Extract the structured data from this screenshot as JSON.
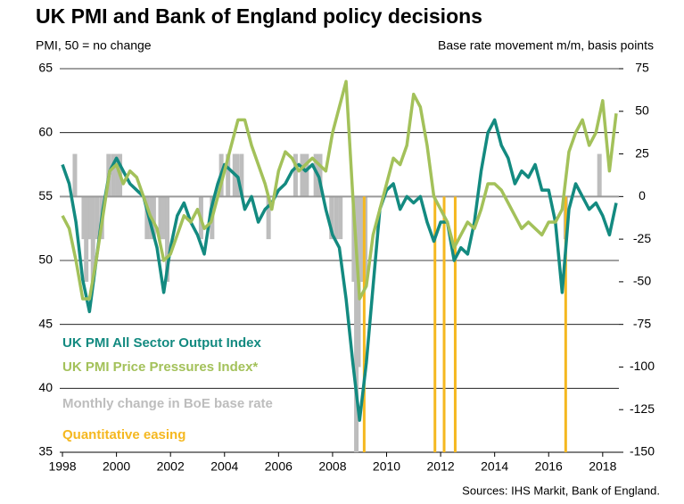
{
  "chart_data": {
    "type": "line",
    "title": "UK PMI and Bank of England policy decisions",
    "y_label": "PMI, 50 = no change",
    "y2_label": "Base rate movement m/m, basis points",
    "source": "Sources: IHS Markit, Bank of England.",
    "xlim": [
      1997.9,
      2018.6
    ],
    "xticks": [
      1998,
      2000,
      2002,
      2004,
      2006,
      2008,
      2010,
      2012,
      2014,
      2016,
      2018
    ],
    "ylim": [
      35,
      65
    ],
    "yticks": [
      35,
      40,
      45,
      50,
      55,
      60,
      65
    ],
    "y2lim": [
      -150,
      75
    ],
    "y2ticks": [
      -150,
      -125,
      -100,
      -75,
      -50,
      -25,
      0,
      25,
      50,
      75
    ],
    "grid": true,
    "x": [
      1998.0,
      1998.25,
      1998.5,
      1998.75,
      1999.0,
      1999.25,
      1999.5,
      1999.75,
      2000.0,
      2000.25,
      2000.5,
      2000.75,
      2001.0,
      2001.25,
      2001.5,
      2001.75,
      2002.0,
      2002.25,
      2002.5,
      2002.75,
      2003.0,
      2003.25,
      2003.5,
      2003.75,
      2004.0,
      2004.25,
      2004.5,
      2004.75,
      2005.0,
      2005.25,
      2005.5,
      2005.75,
      2006.0,
      2006.25,
      2006.5,
      2006.75,
      2007.0,
      2007.25,
      2007.5,
      2007.75,
      2008.0,
      2008.25,
      2008.5,
      2008.75,
      2009.0,
      2009.25,
      2009.5,
      2009.75,
      2010.0,
      2010.25,
      2010.5,
      2010.75,
      2011.0,
      2011.25,
      2011.5,
      2011.75,
      2012.0,
      2012.25,
      2012.5,
      2012.75,
      2013.0,
      2013.25,
      2013.5,
      2013.75,
      2014.0,
      2014.25,
      2014.5,
      2014.75,
      2015.0,
      2015.25,
      2015.5,
      2015.75,
      2016.0,
      2016.25,
      2016.5,
      2016.75,
      2017.0,
      2017.25,
      2017.5,
      2017.75,
      2018.0,
      2018.25,
      2018.5
    ],
    "series": [
      {
        "name": "UK PMI All Sector Output Index",
        "color": "#138a80",
        "values": [
          57.5,
          56,
          53,
          48.5,
          46,
          50,
          54,
          57,
          58,
          57,
          56,
          55.5,
          55,
          53,
          51,
          47.5,
          51,
          53.5,
          54.5,
          53,
          52,
          50.5,
          54,
          56,
          57.5,
          57,
          56.5,
          54,
          55,
          53,
          54,
          54.5,
          55.5,
          56,
          57,
          57.5,
          57,
          57.5,
          56.5,
          54,
          52,
          51,
          47,
          42,
          37.5,
          42,
          48,
          54,
          55.5,
          56,
          54,
          55,
          54.5,
          55,
          53,
          51.5,
          53,
          53,
          50,
          51,
          50.5,
          53,
          57,
          60,
          61,
          59,
          58,
          56,
          57,
          56.5,
          57.5,
          55.5,
          55.5,
          53,
          47.5,
          54,
          56,
          55,
          54,
          54.5,
          53.5,
          52,
          54.5
        ]
      },
      {
        "name": "UK PMI Price Pressures Index*",
        "color": "#a3c15a",
        "values": [
          53.5,
          52.5,
          50,
          47,
          47,
          50,
          53.5,
          57,
          57.5,
          56,
          57,
          56.5,
          55,
          53.5,
          52.5,
          50,
          50.5,
          52,
          53.5,
          53,
          54,
          52.5,
          53,
          55,
          57,
          59,
          61,
          61,
          59,
          57.5,
          56,
          54,
          57,
          58.5,
          58,
          57,
          57.5,
          58,
          57.5,
          57,
          60,
          62,
          64,
          55,
          47,
          48,
          52,
          54,
          56,
          58,
          57.5,
          59,
          63,
          62,
          59,
          55,
          54,
          53,
          51,
          52,
          53,
          52.5,
          54,
          56,
          56,
          55.5,
          54.5,
          53.5,
          52.5,
          53,
          52.5,
          52,
          53,
          53,
          54,
          58.5,
          60,
          61,
          59,
          60,
          62.5,
          57,
          61.5
        ]
      },
      {
        "name": "Monthly change in BoE base rate",
        "color": "#bdbdbd",
        "axis": "y2",
        "type": "bar",
        "x": [
          1998.46,
          1998.79,
          1998.88,
          1998.96,
          1999.04,
          1999.13,
          1999.29,
          1999.46,
          1999.71,
          1999.88,
          2000.04,
          2000.13,
          2001.13,
          2001.29,
          2001.38,
          2001.63,
          2001.71,
          2001.79,
          2001.88,
          2003.13,
          2003.54,
          2003.88,
          2004.13,
          2004.38,
          2004.46,
          2004.63,
          2005.63,
          2006.63,
          2006.88,
          2007.04,
          2007.38,
          2007.54,
          2007.96,
          2008.13,
          2008.29,
          2008.79,
          2008.88,
          2008.96,
          2009.04,
          2009.13,
          2009.21,
          2016.63,
          2017.88
        ],
        "values": [
          25,
          -25,
          -50,
          -25,
          -25,
          -50,
          -25,
          -25,
          25,
          25,
          25,
          25,
          -25,
          -25,
          -25,
          -25,
          -25,
          -25,
          -50,
          -25,
          -25,
          25,
          25,
          25,
          25,
          25,
          -25,
          25,
          25,
          25,
          25,
          25,
          -25,
          -25,
          -25,
          -50,
          -150,
          -100,
          -50,
          -50,
          -50,
          -25,
          25
        ]
      }
    ],
    "qe": {
      "name": "Quantitative easing",
      "color": "#f5b820",
      "x": [
        2009.17,
        2011.79,
        2012.13,
        2012.54,
        2016.63
      ]
    }
  }
}
